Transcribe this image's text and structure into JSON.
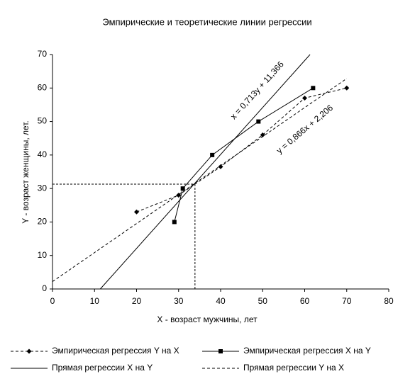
{
  "chart_data": {
    "type": "line",
    "title": "Эмпирические и теоретические линии регрессии",
    "xlabel": "X - возраст мужчины, лет",
    "ylabel": "Y - возраст женщины, лет.",
    "xlim": [
      0,
      80
    ],
    "xticks": [
      0,
      10,
      20,
      30,
      40,
      50,
      60,
      70,
      80
    ],
    "ylim": [
      0,
      70
    ],
    "yticks": [
      0,
      10,
      20,
      30,
      40,
      50,
      60,
      70
    ],
    "series": [
      {
        "name": "Эмпирическая регрессия Y на X",
        "color": "#000000",
        "marker": "diamond",
        "dashed": true,
        "x": [
          20,
          30,
          40,
          50,
          60,
          70
        ],
        "values": [
          23,
          28,
          36.5,
          46,
          57,
          60
        ]
      },
      {
        "name": "Эмпирическая регрессия X на Y",
        "color": "#000000",
        "marker": "square",
        "dashed": false,
        "x": [
          29,
          31,
          38,
          49,
          62
        ],
        "values": [
          20,
          30,
          40,
          50,
          60
        ]
      },
      {
        "name": "Прямая регрессии X на Y",
        "color": "#000000",
        "marker": null,
        "dashed": false,
        "x": [
          11.366,
          61.276
        ],
        "values": [
          0,
          70
        ]
      },
      {
        "name": "Прямая регрессии Y на X",
        "color": "#000000",
        "marker": null,
        "dashed": true,
        "x": [
          0,
          70
        ],
        "values": [
          2.206,
          62.826
        ]
      }
    ],
    "reference_point": {
      "x": 33.9,
      "y": 31.3
    },
    "annotations": [
      "x = 0,713y + 11,366",
      "y = 0,866x + 2,206"
    ]
  }
}
